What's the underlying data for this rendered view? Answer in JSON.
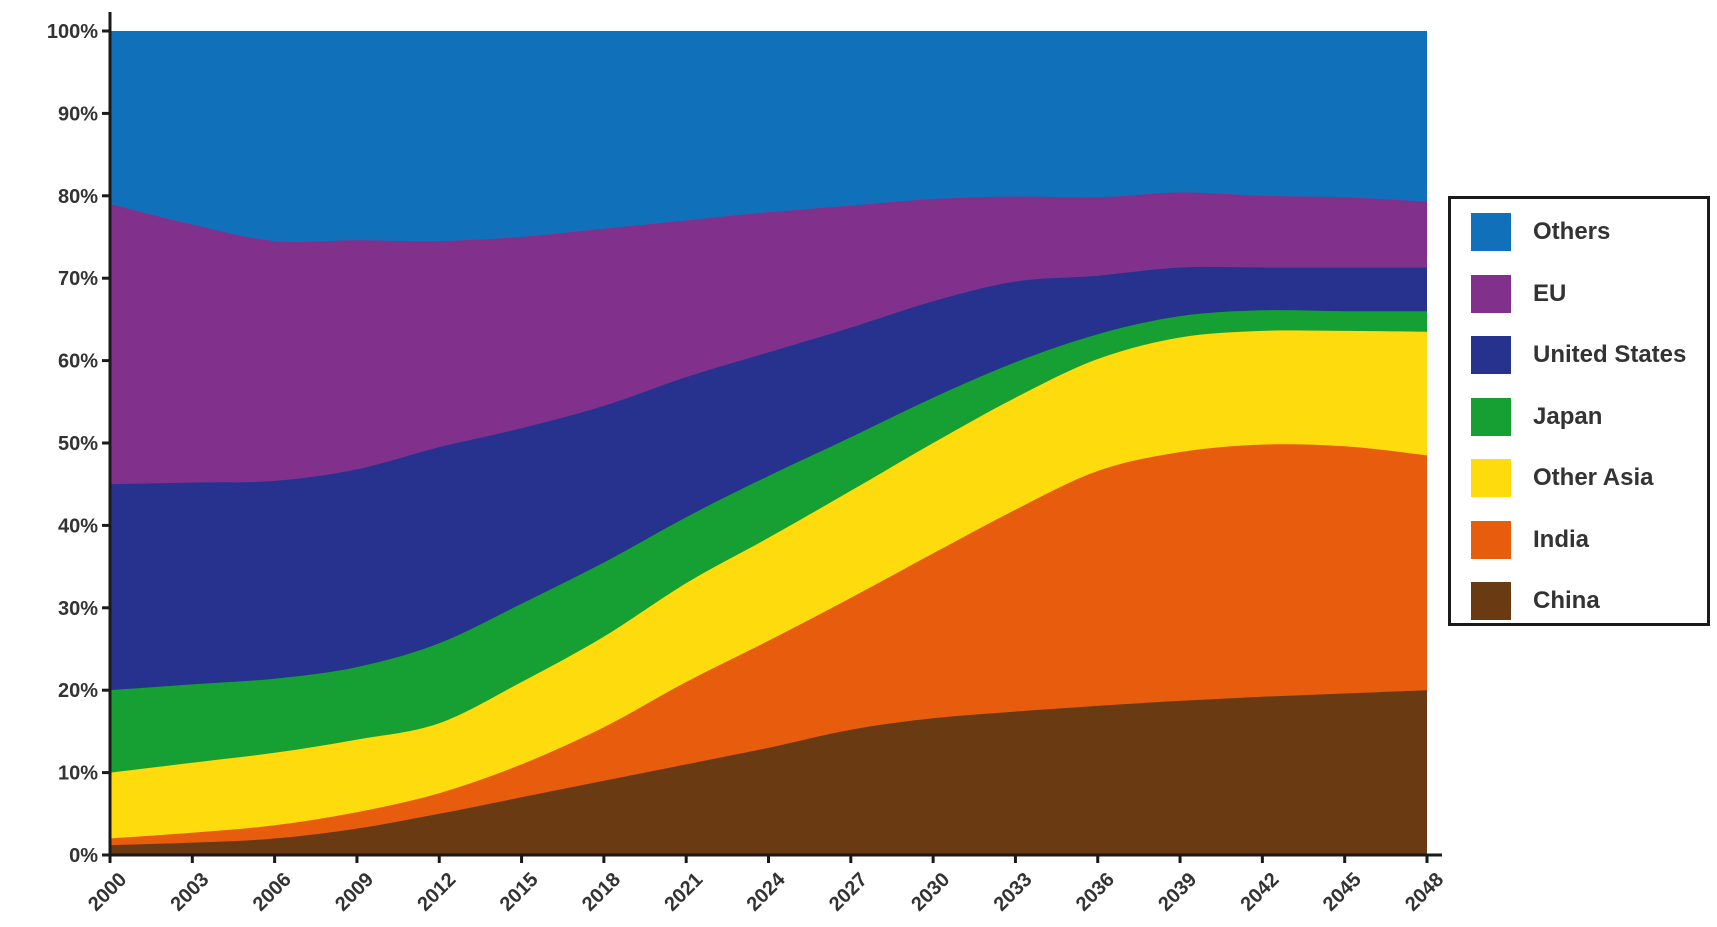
{
  "chart_data": {
    "type": "area",
    "stacked": true,
    "percent": true,
    "x": [
      2000,
      2003,
      2006,
      2009,
      2012,
      2015,
      2018,
      2021,
      2024,
      2027,
      2030,
      2033,
      2036,
      2039,
      2042,
      2045,
      2048
    ],
    "x_tick_labels": [
      "2000",
      "2003",
      "2006",
      "2009",
      "2012",
      "2015",
      "2018",
      "2021",
      "2024",
      "2027",
      "2030",
      "2033",
      "2036",
      "2039",
      "2042",
      "2045",
      "2048"
    ],
    "y_tick_labels": [
      "0%",
      "10%",
      "20%",
      "30%",
      "40%",
      "50%",
      "60%",
      "70%",
      "80%",
      "90%",
      "100%"
    ],
    "ylim": [
      0,
      100
    ],
    "title": "",
    "xlabel": "",
    "ylabel": "",
    "legend_position": "right",
    "series": [
      {
        "name": "China",
        "color": "#6a3a12",
        "values": [
          1.2,
          1.5,
          2.0,
          3.2,
          5.0,
          7.0,
          9.0,
          11.0,
          13.0,
          15.2,
          16.6,
          17.4,
          18.1,
          18.7,
          19.2,
          19.6,
          20.0
        ]
      },
      {
        "name": "India",
        "color": "#e85c0d",
        "values": [
          0.8,
          1.2,
          1.6,
          2.0,
          2.5,
          4.0,
          6.5,
          10.0,
          13.0,
          16.0,
          20.0,
          24.5,
          28.5,
          30.2,
          30.6,
          30.0,
          28.5
        ]
      },
      {
        "name": "Other Asia",
        "color": "#fddb0d",
        "values": [
          8.0,
          8.5,
          8.8,
          8.8,
          8.5,
          10.0,
          11.0,
          12.0,
          12.5,
          13.0,
          13.4,
          13.6,
          13.6,
          13.9,
          13.8,
          14.0,
          15.0
        ]
      },
      {
        "name": "Japan",
        "color": "#16a034",
        "values": [
          10.0,
          9.5,
          9.0,
          8.8,
          9.7,
          9.5,
          9.0,
          8.0,
          7.5,
          6.5,
          5.5,
          4.3,
          3.0,
          2.6,
          2.5,
          2.4,
          2.5
        ]
      },
      {
        "name": "United States",
        "color": "#27328e",
        "values": [
          25.0,
          24.5,
          24.0,
          24.0,
          23.8,
          21.3,
          19.0,
          17.0,
          15.0,
          13.3,
          11.7,
          9.8,
          7.1,
          5.9,
          5.2,
          5.3,
          5.3
        ]
      },
      {
        "name": "EU",
        "color": "#81318c",
        "values": [
          34.0,
          31.3,
          29.1,
          27.8,
          25.0,
          23.2,
          21.5,
          19.0,
          17.0,
          14.8,
          12.4,
          10.3,
          9.5,
          9.1,
          8.7,
          8.5,
          8.0
        ]
      },
      {
        "name": "Others",
        "color": "#1170ba",
        "values": [
          21.0,
          23.5,
          25.5,
          25.4,
          25.5,
          25.0,
          24.0,
          23.0,
          22.0,
          21.2,
          20.4,
          20.1,
          20.2,
          19.6,
          20.0,
          20.2,
          20.7
        ]
      }
    ],
    "legend_order": [
      "Others",
      "EU",
      "United States",
      "Japan",
      "Other Asia",
      "India",
      "China"
    ]
  }
}
